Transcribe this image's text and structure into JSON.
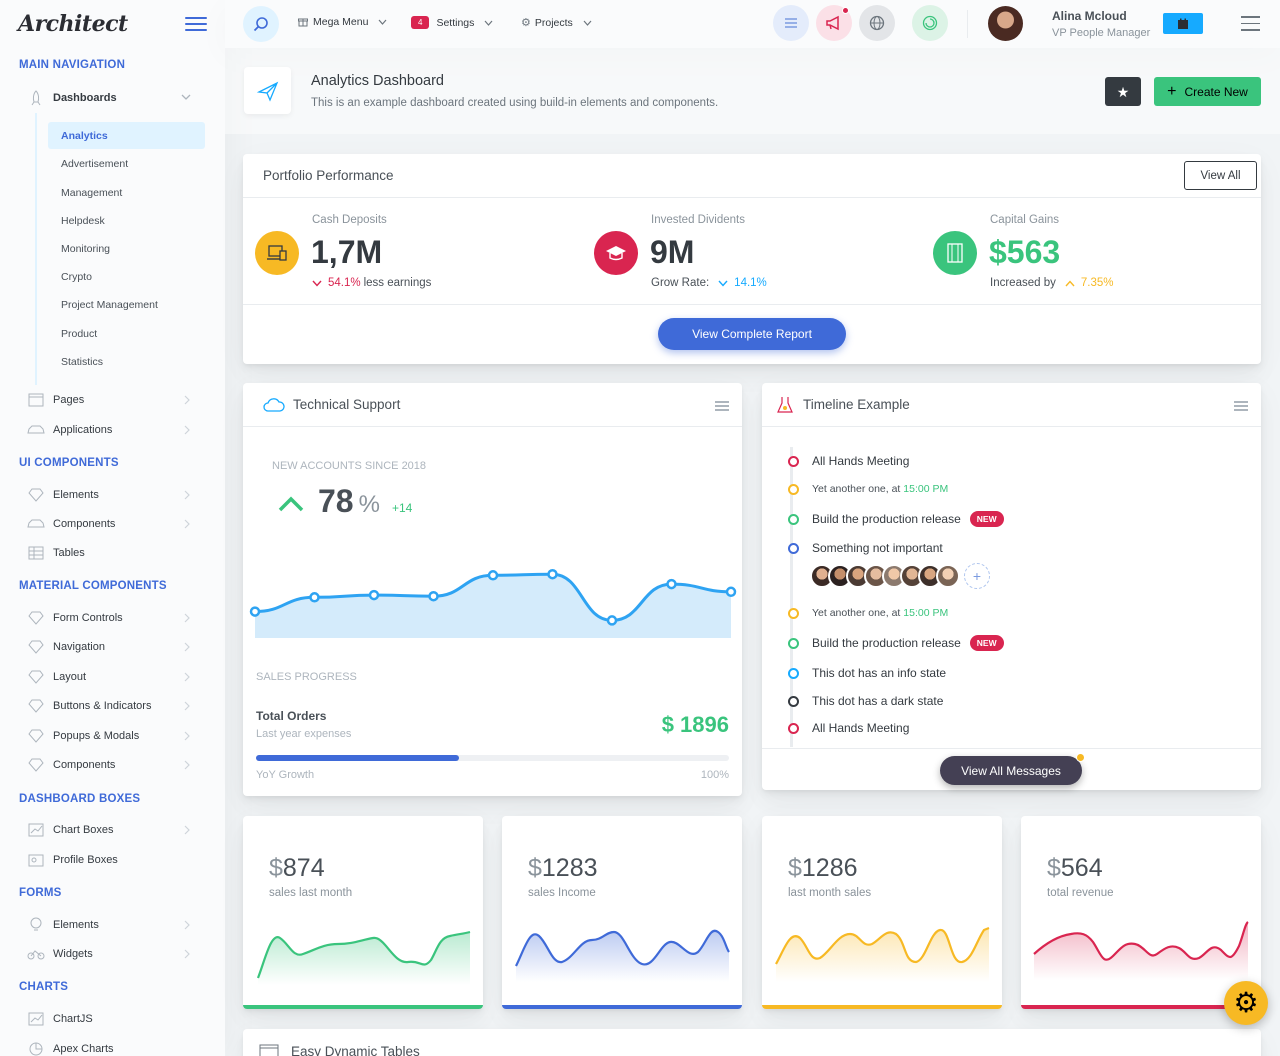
{
  "app": {
    "logo": "Architect"
  },
  "sidebar": {
    "sections": {
      "main": "Main Navigation",
      "ui": "UI Components",
      "material": "Material Components",
      "dashboard_boxes": "Dashboard Boxes",
      "forms": "Forms",
      "charts": "Charts"
    },
    "dashboards": "Dashboards",
    "dashboard_items": [
      "Analytics",
      "Advertisement",
      "Management",
      "Helpdesk",
      "Monitoring",
      "Crypto",
      "Project Management",
      "Product",
      "Statistics"
    ],
    "pages": "Pages",
    "applications": "Applications",
    "ui_items": [
      "Elements",
      "Components",
      "Tables"
    ],
    "material_items": [
      "Form Controls",
      "Navigation",
      "Layout",
      "Buttons & Indicators",
      "Popups & Modals",
      "Components"
    ],
    "box_items": [
      "Chart Boxes",
      "Profile Boxes"
    ],
    "form_items": [
      "Elements",
      "Widgets"
    ],
    "chart_items": [
      "ChartJS",
      "Apex Charts"
    ]
  },
  "topbar": {
    "mega_menu": "Mega Menu",
    "settings": "Settings",
    "settings_badge": "4",
    "projects": "Projects",
    "user_name": "Alina Mcloud",
    "user_role": "VP People Manager"
  },
  "page": {
    "title": "Analytics Dashboard",
    "subtitle": "This is an example dashboard created using build-in elements and components.",
    "create_new": "Create New"
  },
  "portfolio": {
    "title": "Portfolio Performance",
    "view_all": "View All",
    "stats": [
      {
        "label": "Cash Deposits",
        "value": "1,7M",
        "change": "54.1%",
        "change_text": "less earnings",
        "color": "#f7b924"
      },
      {
        "label": "Invested Dividents",
        "value": "9M",
        "grow_label": "Grow Rate:",
        "change": "14.1%",
        "color": "#d92550"
      },
      {
        "label": "Capital Gains",
        "value": "$563",
        "inc_label": "Increased by",
        "change": "7.35%",
        "color": "#3ac47d"
      }
    ],
    "report_button": "View Complete Report"
  },
  "support": {
    "title": "Technical Support",
    "accounts_label": "New Accounts since 2018",
    "pct": "78",
    "pct_sign": "%",
    "delta": "+14",
    "sales_progress": "Sales Progress",
    "orders_title": "Total Orders",
    "orders_sub": "Last year expenses",
    "orders_value": "$ 1896",
    "growth_label": "YoY Growth",
    "growth_pct": "100%",
    "progress": 0.43
  },
  "chart_data": {
    "type": "area",
    "values": [
      0.24,
      0.37,
      0.39,
      0.38,
      0.57,
      0.58,
      0.16,
      0.49,
      0.42
    ]
  },
  "timeline": {
    "title": "Timeline Example",
    "items": [
      {
        "text": "All Hands Meeting",
        "color": "#d92550"
      },
      {
        "text": "Yet another one, at ",
        "time": "15:00 PM",
        "color": "#f7b924"
      },
      {
        "text": "Build the production release",
        "badge": "NEW",
        "color": "#3ac47d"
      },
      {
        "text": "Something not important",
        "color": "#3f6ad8"
      },
      {
        "text": "Yet another one, at ",
        "time": "15:00 PM",
        "color": "#f7b924"
      },
      {
        "text": "Build the production release",
        "badge": "NEW",
        "color": "#3ac47d"
      },
      {
        "text": "This dot has an info state",
        "color": "#16aaff"
      },
      {
        "text": "This dot has a dark state",
        "color": "#343a40"
      },
      {
        "text": "All Hands Meeting",
        "color": "#d92550"
      }
    ],
    "view_all": "View All Messages"
  },
  "mini_stats": [
    {
      "value": "874",
      "label": "sales last month",
      "color": "#3ac47d"
    },
    {
      "value": "1283",
      "label": "sales Income",
      "color": "#3f6ad8"
    },
    {
      "value": "1286",
      "label": "last month sales",
      "color": "#f7b924"
    },
    {
      "value": "564",
      "label": "total revenue",
      "color": "#d92550"
    }
  ],
  "tables": {
    "title": "Easy Dynamic Tables"
  }
}
